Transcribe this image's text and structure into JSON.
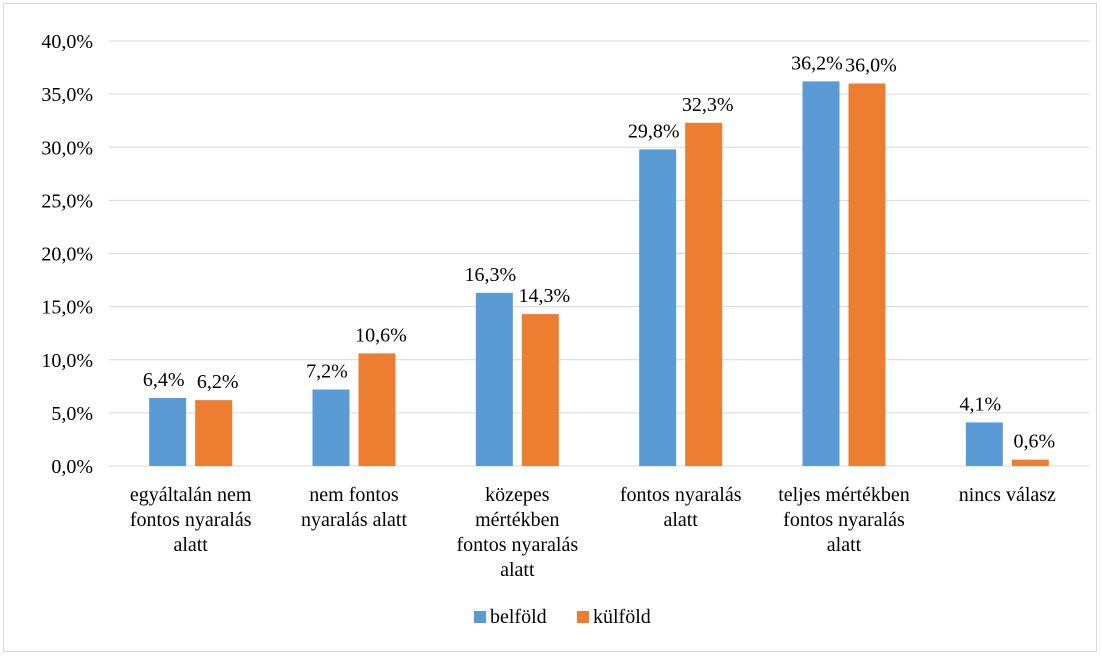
{
  "chart_data": {
    "type": "bar",
    "categories": [
      [
        "egyáltalán nem",
        "fontos nyaralás",
        "alatt"
      ],
      [
        "nem fontos",
        "nyaralás alatt"
      ],
      [
        "közepes",
        "mértékben",
        "fontos nyaralás",
        "alatt"
      ],
      [
        "fontos nyaralás",
        "alatt"
      ],
      [
        "teljes mértékben",
        "fontos nyaralás",
        "alatt"
      ],
      [
        "nincs válasz"
      ]
    ],
    "series": [
      {
        "name": "belföld",
        "color": "#5b9bd5",
        "values": [
          6.4,
          7.2,
          16.3,
          29.8,
          36.2,
          4.1
        ],
        "labels": [
          "6,4%",
          "7,2%",
          "16,3%",
          "29,8%",
          "36,2%",
          "4,1%"
        ]
      },
      {
        "name": "külföld",
        "color": "#ed7d31",
        "values": [
          6.2,
          10.6,
          14.3,
          32.3,
          36.0,
          0.6
        ],
        "labels": [
          "6,2%",
          "10,6%",
          "14,3%",
          "32,3%",
          "36,0%",
          "0,6%"
        ]
      }
    ],
    "yticks": [
      0,
      5,
      10,
      15,
      20,
      25,
      30,
      35,
      40
    ],
    "ytick_labels": [
      "0,0%",
      "5,0%",
      "10,0%",
      "15,0%",
      "20,0%",
      "25,0%",
      "30,0%",
      "35,0%",
      "40,0%"
    ],
    "ylim": [
      0,
      40
    ],
    "grid": true,
    "legend_position": "bottom",
    "title": "",
    "xlabel": "",
    "ylabel": ""
  }
}
